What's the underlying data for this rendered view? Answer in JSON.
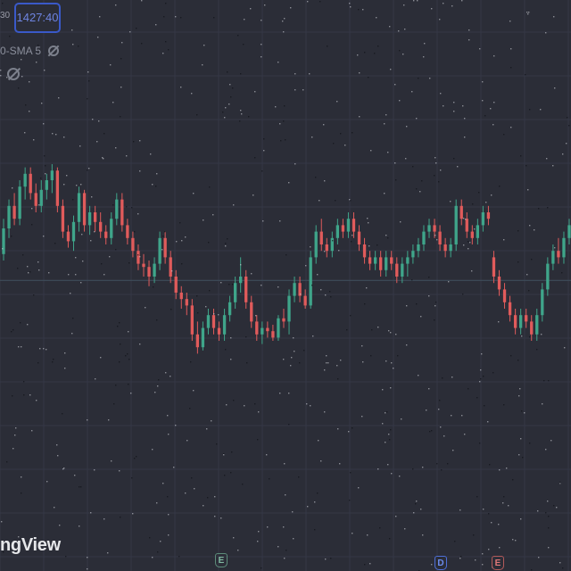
{
  "header": {
    "cut_value": "30",
    "price_tag": "1427:40",
    "indicator_label": "0-SMA 5",
    "indicator_hidden_icon": "eye-slash-icon",
    "extra_hidden_icon": "eye-slash-icon"
  },
  "brand": {
    "text": "ngView"
  },
  "events": [
    {
      "label": "E",
      "kind": "earnings",
      "color": "#7fb8a0"
    },
    {
      "label": "D",
      "kind": "dividend",
      "color": "#6e8ef0"
    },
    {
      "label": "E",
      "kind": "earnings",
      "color": "#e07878"
    }
  ],
  "colors": {
    "background": "#2b2d37",
    "grid": "#353846",
    "up": "#3fa58a",
    "down": "#e05b5b",
    "price_line": "#3e4d5a",
    "accent": "#3a59c8"
  },
  "chart_data": {
    "type": "candlestick",
    "ylim": [
      0,
      100
    ],
    "grid": true,
    "reference_line_value": 48.8,
    "candles": [
      {
        "o": 57,
        "h": 68,
        "l": 55,
        "c": 65
      },
      {
        "o": 65,
        "h": 74,
        "l": 62,
        "c": 72
      },
      {
        "o": 72,
        "h": 76,
        "l": 66,
        "c": 68
      },
      {
        "o": 68,
        "h": 80,
        "l": 66,
        "c": 78
      },
      {
        "o": 78,
        "h": 84,
        "l": 74,
        "c": 82
      },
      {
        "o": 82,
        "h": 84,
        "l": 74,
        "c": 76
      },
      {
        "o": 76,
        "h": 79,
        "l": 70,
        "c": 72
      },
      {
        "o": 72,
        "h": 80,
        "l": 70,
        "c": 77
      },
      {
        "o": 77,
        "h": 82,
        "l": 74,
        "c": 80
      },
      {
        "o": 80,
        "h": 85,
        "l": 76,
        "c": 83
      },
      {
        "o": 83,
        "h": 84,
        "l": 70,
        "c": 72
      },
      {
        "o": 72,
        "h": 74,
        "l": 62,
        "c": 64
      },
      {
        "o": 64,
        "h": 66,
        "l": 59,
        "c": 61
      },
      {
        "o": 61,
        "h": 69,
        "l": 58,
        "c": 67
      },
      {
        "o": 67,
        "h": 78,
        "l": 64,
        "c": 76
      },
      {
        "o": 76,
        "h": 77,
        "l": 64,
        "c": 66
      },
      {
        "o": 66,
        "h": 72,
        "l": 63,
        "c": 70
      },
      {
        "o": 70,
        "h": 72,
        "l": 64,
        "c": 67
      },
      {
        "o": 67,
        "h": 70,
        "l": 62,
        "c": 64
      },
      {
        "o": 64,
        "h": 66,
        "l": 60,
        "c": 62
      },
      {
        "o": 62,
        "h": 70,
        "l": 60,
        "c": 68
      },
      {
        "o": 68,
        "h": 76,
        "l": 66,
        "c": 74
      },
      {
        "o": 74,
        "h": 76,
        "l": 64,
        "c": 66
      },
      {
        "o": 66,
        "h": 68,
        "l": 60,
        "c": 62
      },
      {
        "o": 62,
        "h": 64,
        "l": 56,
        "c": 58
      },
      {
        "o": 58,
        "h": 60,
        "l": 52,
        "c": 54
      },
      {
        "o": 54,
        "h": 57,
        "l": 50,
        "c": 53
      },
      {
        "o": 53,
        "h": 55,
        "l": 47,
        "c": 50
      },
      {
        "o": 50,
        "h": 56,
        "l": 48,
        "c": 54
      },
      {
        "o": 54,
        "h": 64,
        "l": 52,
        "c": 62
      },
      {
        "o": 62,
        "h": 64,
        "l": 54,
        "c": 56
      },
      {
        "o": 56,
        "h": 58,
        "l": 48,
        "c": 50
      },
      {
        "o": 50,
        "h": 52,
        "l": 43,
        "c": 45
      },
      {
        "o": 45,
        "h": 47,
        "l": 40,
        "c": 43
      },
      {
        "o": 43,
        "h": 45,
        "l": 38,
        "c": 41
      },
      {
        "o": 41,
        "h": 43,
        "l": 30,
        "c": 32
      },
      {
        "o": 32,
        "h": 36,
        "l": 26,
        "c": 28
      },
      {
        "o": 28,
        "h": 36,
        "l": 27,
        "c": 34
      },
      {
        "o": 34,
        "h": 40,
        "l": 32,
        "c": 38
      },
      {
        "o": 38,
        "h": 40,
        "l": 32,
        "c": 34
      },
      {
        "o": 34,
        "h": 36,
        "l": 30,
        "c": 32
      },
      {
        "o": 32,
        "h": 40,
        "l": 30,
        "c": 38
      },
      {
        "o": 38,
        "h": 44,
        "l": 36,
        "c": 42
      },
      {
        "o": 42,
        "h": 50,
        "l": 40,
        "c": 48
      },
      {
        "o": 48,
        "h": 56,
        "l": 45,
        "c": 50
      },
      {
        "o": 50,
        "h": 52,
        "l": 40,
        "c": 42
      },
      {
        "o": 42,
        "h": 44,
        "l": 34,
        "c": 36
      },
      {
        "o": 36,
        "h": 38,
        "l": 30,
        "c": 32
      },
      {
        "o": 32,
        "h": 36,
        "l": 29,
        "c": 34
      },
      {
        "o": 34,
        "h": 36,
        "l": 31,
        "c": 33
      },
      {
        "o": 33,
        "h": 35,
        "l": 30,
        "c": 31
      },
      {
        "o": 31,
        "h": 38,
        "l": 30,
        "c": 37
      },
      {
        "o": 37,
        "h": 40,
        "l": 34,
        "c": 36
      },
      {
        "o": 36,
        "h": 46,
        "l": 32,
        "c": 44
      },
      {
        "o": 44,
        "h": 50,
        "l": 42,
        "c": 48
      },
      {
        "o": 48,
        "h": 50,
        "l": 42,
        "c": 44
      },
      {
        "o": 44,
        "h": 46,
        "l": 40,
        "c": 41
      },
      {
        "o": 41,
        "h": 58,
        "l": 40,
        "c": 56
      },
      {
        "o": 56,
        "h": 66,
        "l": 54,
        "c": 64
      },
      {
        "o": 64,
        "h": 68,
        "l": 58,
        "c": 60
      },
      {
        "o": 60,
        "h": 62,
        "l": 56,
        "c": 58
      },
      {
        "o": 58,
        "h": 64,
        "l": 56,
        "c": 62
      },
      {
        "o": 62,
        "h": 68,
        "l": 60,
        "c": 66
      },
      {
        "o": 66,
        "h": 68,
        "l": 62,
        "c": 64
      },
      {
        "o": 64,
        "h": 70,
        "l": 62,
        "c": 68
      },
      {
        "o": 68,
        "h": 70,
        "l": 62,
        "c": 64
      },
      {
        "o": 64,
        "h": 66,
        "l": 58,
        "c": 60
      },
      {
        "o": 60,
        "h": 62,
        "l": 54,
        "c": 56
      },
      {
        "o": 56,
        "h": 58,
        "l": 52,
        "c": 54
      },
      {
        "o": 54,
        "h": 58,
        "l": 52,
        "c": 56
      },
      {
        "o": 56,
        "h": 58,
        "l": 50,
        "c": 52
      },
      {
        "o": 52,
        "h": 58,
        "l": 50,
        "c": 56
      },
      {
        "o": 56,
        "h": 58,
        "l": 52,
        "c": 54
      },
      {
        "o": 54,
        "h": 56,
        "l": 48,
        "c": 50
      },
      {
        "o": 50,
        "h": 56,
        "l": 48,
        "c": 54
      },
      {
        "o": 54,
        "h": 58,
        "l": 50,
        "c": 56
      },
      {
        "o": 56,
        "h": 60,
        "l": 54,
        "c": 58
      },
      {
        "o": 58,
        "h": 62,
        "l": 56,
        "c": 60
      },
      {
        "o": 60,
        "h": 66,
        "l": 58,
        "c": 64
      },
      {
        "o": 64,
        "h": 68,
        "l": 62,
        "c": 66
      },
      {
        "o": 66,
        "h": 68,
        "l": 62,
        "c": 64
      },
      {
        "o": 64,
        "h": 66,
        "l": 58,
        "c": 60
      },
      {
        "o": 60,
        "h": 62,
        "l": 56,
        "c": 58
      },
      {
        "o": 58,
        "h": 62,
        "l": 56,
        "c": 60
      },
      {
        "o": 60,
        "h": 74,
        "l": 58,
        "c": 72
      },
      {
        "o": 72,
        "h": 74,
        "l": 66,
        "c": 68
      },
      {
        "o": 68,
        "h": 70,
        "l": 62,
        "c": 64
      },
      {
        "o": 64,
        "h": 66,
        "l": 60,
        "c": 62
      },
      {
        "o": 62,
        "h": 68,
        "l": 60,
        "c": 66
      },
      {
        "o": 66,
        "h": 72,
        "l": 64,
        "c": 70
      },
      {
        "o": 70,
        "h": 72,
        "l": 66,
        "c": 68
      },
      {
        "o": 56,
        "h": 58,
        "l": 48,
        "c": 50
      },
      {
        "o": 50,
        "h": 52,
        "l": 44,
        "c": 46
      },
      {
        "o": 46,
        "h": 48,
        "l": 40,
        "c": 42
      },
      {
        "o": 42,
        "h": 44,
        "l": 36,
        "c": 38
      },
      {
        "o": 38,
        "h": 40,
        "l": 32,
        "c": 34
      },
      {
        "o": 34,
        "h": 40,
        "l": 32,
        "c": 38
      },
      {
        "o": 38,
        "h": 40,
        "l": 34,
        "c": 36
      },
      {
        "o": 36,
        "h": 38,
        "l": 30,
        "c": 32
      },
      {
        "o": 32,
        "h": 40,
        "l": 30,
        "c": 38
      },
      {
        "o": 38,
        "h": 48,
        "l": 36,
        "c": 46
      },
      {
        "o": 46,
        "h": 56,
        "l": 44,
        "c": 54
      },
      {
        "o": 54,
        "h": 60,
        "l": 52,
        "c": 58
      },
      {
        "o": 58,
        "h": 62,
        "l": 54,
        "c": 56
      },
      {
        "o": 56,
        "h": 64,
        "l": 54,
        "c": 62
      },
      {
        "o": 62,
        "h": 68,
        "l": 60,
        "c": 66
      }
    ]
  }
}
